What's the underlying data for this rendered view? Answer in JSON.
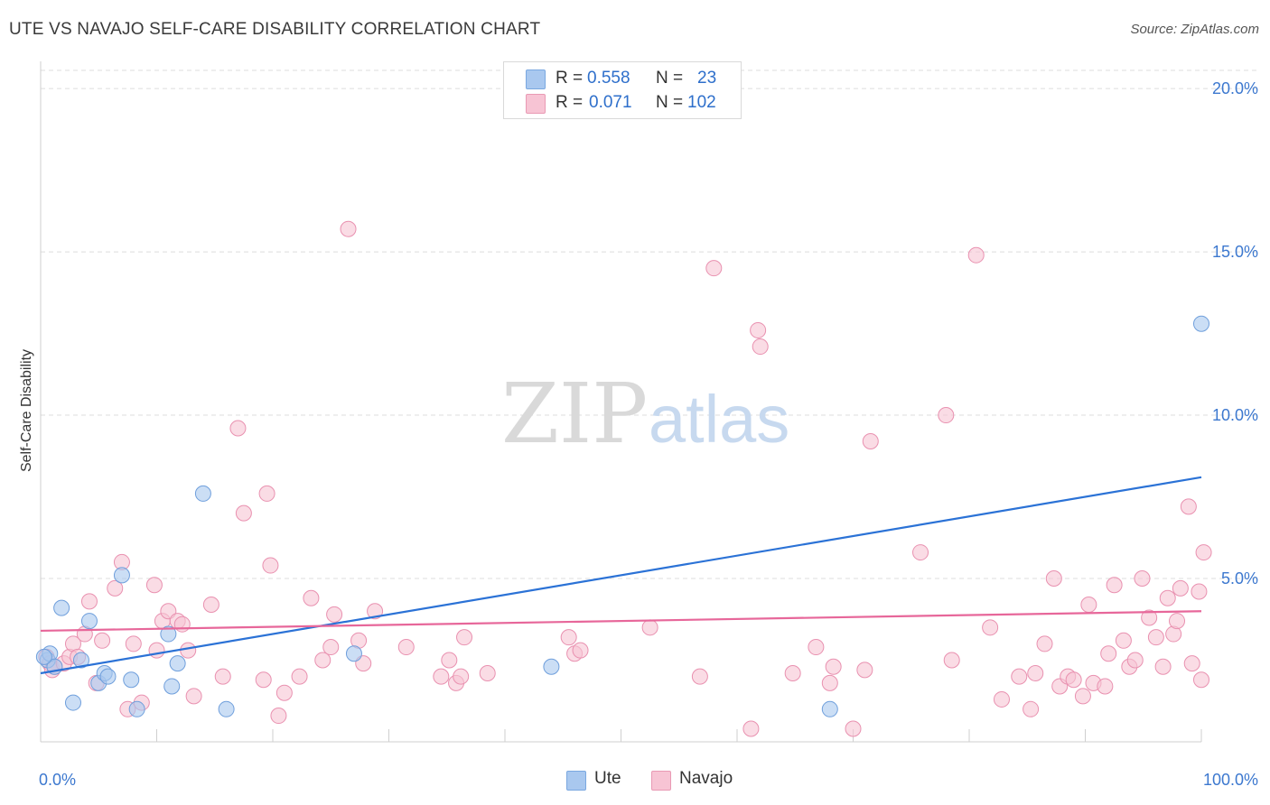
{
  "title": "UTE VS NAVAJO SELF-CARE DISABILITY CORRELATION CHART",
  "source": "Source: ZipAtlas.com",
  "watermark": {
    "part1": "ZIP",
    "part2": "atlas"
  },
  "legend": {
    "rows": [
      {
        "r_label": "R =",
        "r_value": "0.558",
        "n_label": "N =",
        "n_value": "23",
        "color": "#a9c8ef",
        "border": "#7aa8e0"
      },
      {
        "r_label": "R =",
        "r_value": "0.071",
        "n_label": "N =",
        "n_value": "102",
        "color": "#f7c4d4",
        "border": "#e99ab4"
      }
    ]
  },
  "bottom_legend": {
    "ute": "Ute",
    "navajo": "Navajo"
  },
  "colors": {
    "ute_fill": "#a9c8ef",
    "ute_stroke": "#6f9fdc",
    "ute_line": "#2b72d6",
    "navajo_fill": "#f7c4d4",
    "navajo_stroke": "#e991b0",
    "navajo_line": "#e7679a",
    "grid": "#dcdcdc",
    "tick_label": "#3c78cf"
  },
  "chart_data": {
    "type": "scatter",
    "title": "UTE VS NAVAJO SELF-CARE DISABILITY CORRELATION CHART",
    "xlabel": "",
    "ylabel": "Self-Care Disability",
    "xlim": [
      0,
      100
    ],
    "ylim": [
      0,
      20.5
    ],
    "x_tick_labels": [
      "0.0%",
      "100.0%"
    ],
    "y_ticks": [
      5,
      10,
      15,
      20
    ],
    "y_tick_labels": [
      "5.0%",
      "10.0%",
      "15.0%",
      "20.0%"
    ],
    "grid": true,
    "series": [
      {
        "name": "Ute",
        "trend": {
          "x": [
            0,
            100
          ],
          "y": [
            2.1,
            8.1
          ]
        },
        "points": [
          [
            0.6,
            2.5
          ],
          [
            0.8,
            2.7
          ],
          [
            1.2,
            2.3
          ],
          [
            1.8,
            4.1
          ],
          [
            2.8,
            1.2
          ],
          [
            3.5,
            2.5
          ],
          [
            4.2,
            3.7
          ],
          [
            5.0,
            1.8
          ],
          [
            5.5,
            2.1
          ],
          [
            5.8,
            2.0
          ],
          [
            7.0,
            5.1
          ],
          [
            7.8,
            1.9
          ],
          [
            8.3,
            1.0
          ],
          [
            11.0,
            3.3
          ],
          [
            11.3,
            1.7
          ],
          [
            11.8,
            2.4
          ],
          [
            14.0,
            7.6
          ],
          [
            16.0,
            1.0
          ],
          [
            27.0,
            2.7
          ],
          [
            44.0,
            2.3
          ],
          [
            68.0,
            1.0
          ],
          [
            100.0,
            12.8
          ],
          [
            0.3,
            2.6
          ]
        ]
      },
      {
        "name": "Navajo",
        "trend": {
          "x": [
            0,
            100
          ],
          "y": [
            3.4,
            4.0
          ]
        },
        "points": [
          [
            0.5,
            2.6
          ],
          [
            0.8,
            2.4
          ],
          [
            1.0,
            2.2
          ],
          [
            1.2,
            2.3
          ],
          [
            2.0,
            2.4
          ],
          [
            2.5,
            2.6
          ],
          [
            2.8,
            3.0
          ],
          [
            3.2,
            2.6
          ],
          [
            3.8,
            3.3
          ],
          [
            4.2,
            4.3
          ],
          [
            4.8,
            1.8
          ],
          [
            5.3,
            3.1
          ],
          [
            6.4,
            4.7
          ],
          [
            7.0,
            5.5
          ],
          [
            7.5,
            1.0
          ],
          [
            8.0,
            3.0
          ],
          [
            8.7,
            1.2
          ],
          [
            9.8,
            4.8
          ],
          [
            10.0,
            2.8
          ],
          [
            10.5,
            3.7
          ],
          [
            11.0,
            4.0
          ],
          [
            11.8,
            3.7
          ],
          [
            12.2,
            3.6
          ],
          [
            12.7,
            2.8
          ],
          [
            13.2,
            1.4
          ],
          [
            14.7,
            4.2
          ],
          [
            15.7,
            2.0
          ],
          [
            17.0,
            9.6
          ],
          [
            17.5,
            7.0
          ],
          [
            19.2,
            1.9
          ],
          [
            19.5,
            7.6
          ],
          [
            19.8,
            5.4
          ],
          [
            20.5,
            0.8
          ],
          [
            21.0,
            1.5
          ],
          [
            22.3,
            2.0
          ],
          [
            23.3,
            4.4
          ],
          [
            24.3,
            2.5
          ],
          [
            25.0,
            2.9
          ],
          [
            25.3,
            3.9
          ],
          [
            26.5,
            15.7
          ],
          [
            27.4,
            3.1
          ],
          [
            27.8,
            2.4
          ],
          [
            28.8,
            4.0
          ],
          [
            31.5,
            2.9
          ],
          [
            34.5,
            2.0
          ],
          [
            35.2,
            2.5
          ],
          [
            35.8,
            1.8
          ],
          [
            36.2,
            2.0
          ],
          [
            36.5,
            3.2
          ],
          [
            38.5,
            2.1
          ],
          [
            45.5,
            3.2
          ],
          [
            46.0,
            2.7
          ],
          [
            46.5,
            2.8
          ],
          [
            52.5,
            3.5
          ],
          [
            56.8,
            2.0
          ],
          [
            58.0,
            14.5
          ],
          [
            61.2,
            0.4
          ],
          [
            61.8,
            12.6
          ],
          [
            62.0,
            12.1
          ],
          [
            64.8,
            2.1
          ],
          [
            66.8,
            2.9
          ],
          [
            68.0,
            1.8
          ],
          [
            68.3,
            2.3
          ],
          [
            70.0,
            0.4
          ],
          [
            71.0,
            2.2
          ],
          [
            71.5,
            9.2
          ],
          [
            75.8,
            5.8
          ],
          [
            78.0,
            10.0
          ],
          [
            78.5,
            2.5
          ],
          [
            80.6,
            14.9
          ],
          [
            81.8,
            3.5
          ],
          [
            82.8,
            1.3
          ],
          [
            84.3,
            2.0
          ],
          [
            85.3,
            1.0
          ],
          [
            85.7,
            2.1
          ],
          [
            86.5,
            3.0
          ],
          [
            87.3,
            5.0
          ],
          [
            87.8,
            1.7
          ],
          [
            88.5,
            2.0
          ],
          [
            89.0,
            1.9
          ],
          [
            89.8,
            1.4
          ],
          [
            90.3,
            4.2
          ],
          [
            90.7,
            1.8
          ],
          [
            91.7,
            1.7
          ],
          [
            92.0,
            2.7
          ],
          [
            92.5,
            4.8
          ],
          [
            93.3,
            3.1
          ],
          [
            93.8,
            2.3
          ],
          [
            94.3,
            2.5
          ],
          [
            94.9,
            5.0
          ],
          [
            95.5,
            3.8
          ],
          [
            96.1,
            3.2
          ],
          [
            96.7,
            2.3
          ],
          [
            97.1,
            4.4
          ],
          [
            97.6,
            3.3
          ],
          [
            98.2,
            4.7
          ],
          [
            98.9,
            7.2
          ],
          [
            99.2,
            2.4
          ],
          [
            99.8,
            4.6
          ],
          [
            100.0,
            1.9
          ],
          [
            100.2,
            5.8
          ],
          [
            97.9,
            3.7
          ]
        ]
      }
    ]
  }
}
